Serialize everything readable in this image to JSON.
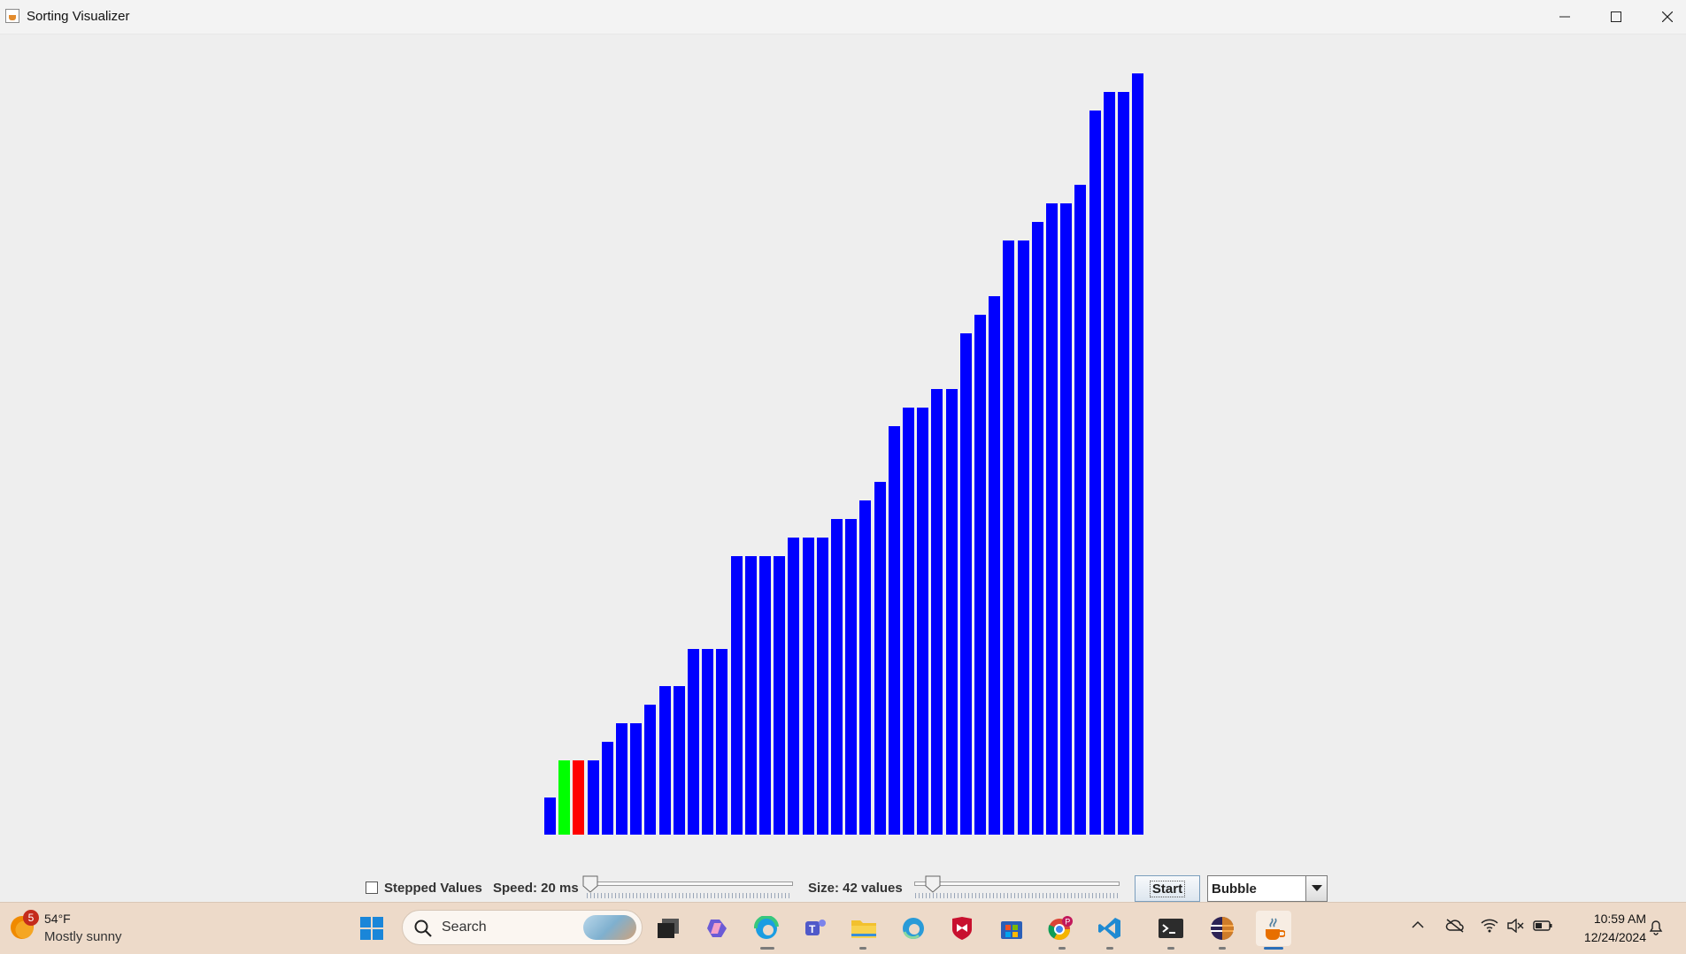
{
  "window": {
    "title": "Sorting Visualizer",
    "minimize_icon": "minimize-icon",
    "maximize_icon": "maximize-icon",
    "close_icon": "close-icon"
  },
  "chart_data": {
    "type": "bar",
    "title": "",
    "values": [
      2,
      4,
      4,
      4,
      5,
      6,
      6,
      7,
      8,
      8,
      10,
      10,
      10,
      15,
      15,
      15,
      15,
      16,
      16,
      16,
      17,
      17,
      18,
      19,
      22,
      23,
      23,
      24,
      24,
      27,
      28,
      29,
      32,
      32,
      33,
      34,
      34,
      35,
      39,
      40,
      40,
      41
    ],
    "highlights": {
      "compare_index": 1,
      "swap_index": 2
    },
    "colors": {
      "default": "#0000ff",
      "compare": "#00ff00",
      "swap": "#ff0000"
    }
  },
  "controls": {
    "stepped_label": "Stepped Values",
    "stepped_checked": false,
    "speed_label": "Speed: 20 ms",
    "speed_value": 20,
    "speed_fraction": 0.02,
    "size_label": "Size: 42 values",
    "size_value": 42,
    "size_fraction": 0.09,
    "start_label": "Start",
    "algorithm_selected": "Bubble"
  },
  "taskbar": {
    "weather_badge": "5",
    "weather_temp": "54°F",
    "weather_desc": "Mostly sunny",
    "search_placeholder": "Search",
    "time": "10:59 AM",
    "date": "12/24/2024",
    "apps": [
      "start-icon",
      "task-view-icon",
      "copilot-icon",
      "edge-icon",
      "teams-icon",
      "file-explorer-icon",
      "edge-dev-icon",
      "mcafee-icon",
      "store-icon",
      "chrome-icon",
      "vscode-icon",
      "terminal-icon",
      "eclipse-icon",
      "java-icon"
    ],
    "tray": [
      "chevron-up-icon",
      "onedrive-icon",
      "wifi-icon",
      "volume-muted-icon",
      "battery-icon",
      "notification-bell-icon"
    ]
  }
}
